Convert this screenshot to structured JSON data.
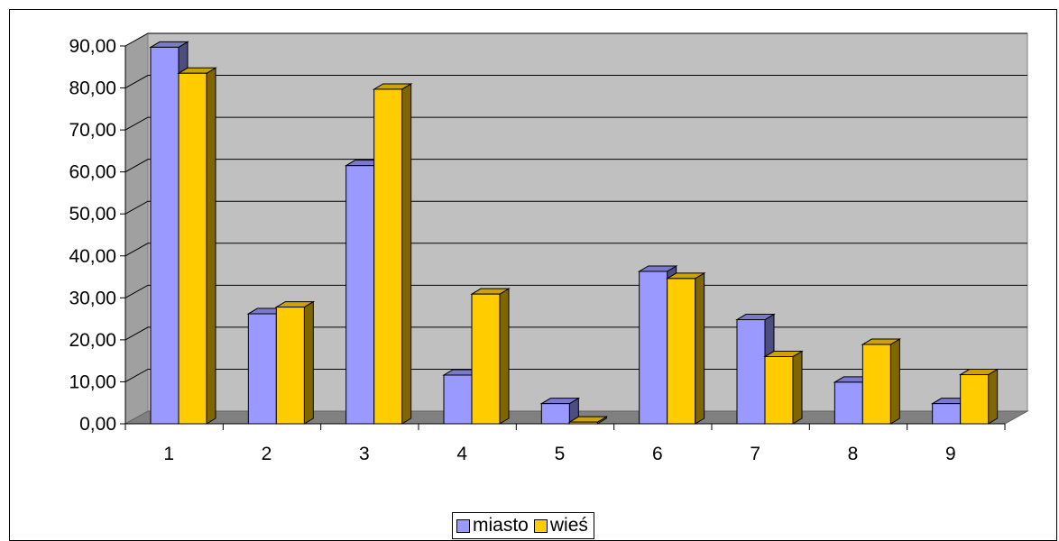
{
  "chart_data": {
    "type": "bar",
    "title": "",
    "xlabel": "",
    "ylabel": "",
    "categories": [
      "1",
      "2",
      "3",
      "4",
      "5",
      "6",
      "7",
      "8",
      "9"
    ],
    "series": [
      {
        "name": "miasto",
        "color": "#9999ff",
        "values": [
          89.7,
          26.2,
          61.5,
          11.6,
          4.8,
          36.3,
          24.8,
          9.9,
          4.8
        ]
      },
      {
        "name": "wieś",
        "color": "#ffcc00",
        "values": [
          83.5,
          27.8,
          79.7,
          30.9,
          0.4,
          34.6,
          16.0,
          18.9,
          11.7
        ]
      }
    ],
    "ylim": [
      0,
      90
    ],
    "yticks": [
      "0,00",
      "10,00",
      "20,00",
      "30,00",
      "40,00",
      "50,00",
      "60,00",
      "70,00",
      "80,00",
      "90,00"
    ],
    "grid": true,
    "legend_position": "bottom",
    "style": "3d-clustered-column"
  }
}
